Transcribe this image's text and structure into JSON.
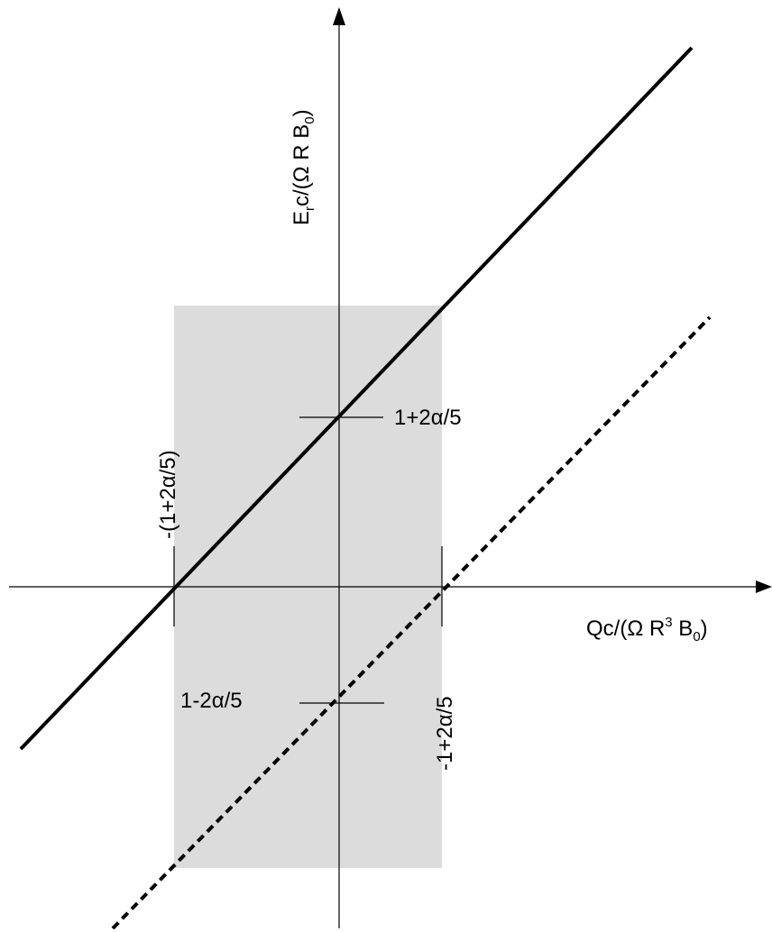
{
  "axes": {
    "y_label": {
      "parts": [
        "E",
        "r",
        "c/(Ω R B",
        "0",
        ")"
      ]
    },
    "x_label": {
      "parts": [
        "Qc/(Ω R",
        "3",
        " B",
        "0",
        ")"
      ]
    }
  },
  "ticks": {
    "y_upper": "1+2α/5",
    "y_lower": "1-2α/5",
    "x_left": "-(1+2α/5)",
    "x_right": "-1+2α/5"
  }
}
